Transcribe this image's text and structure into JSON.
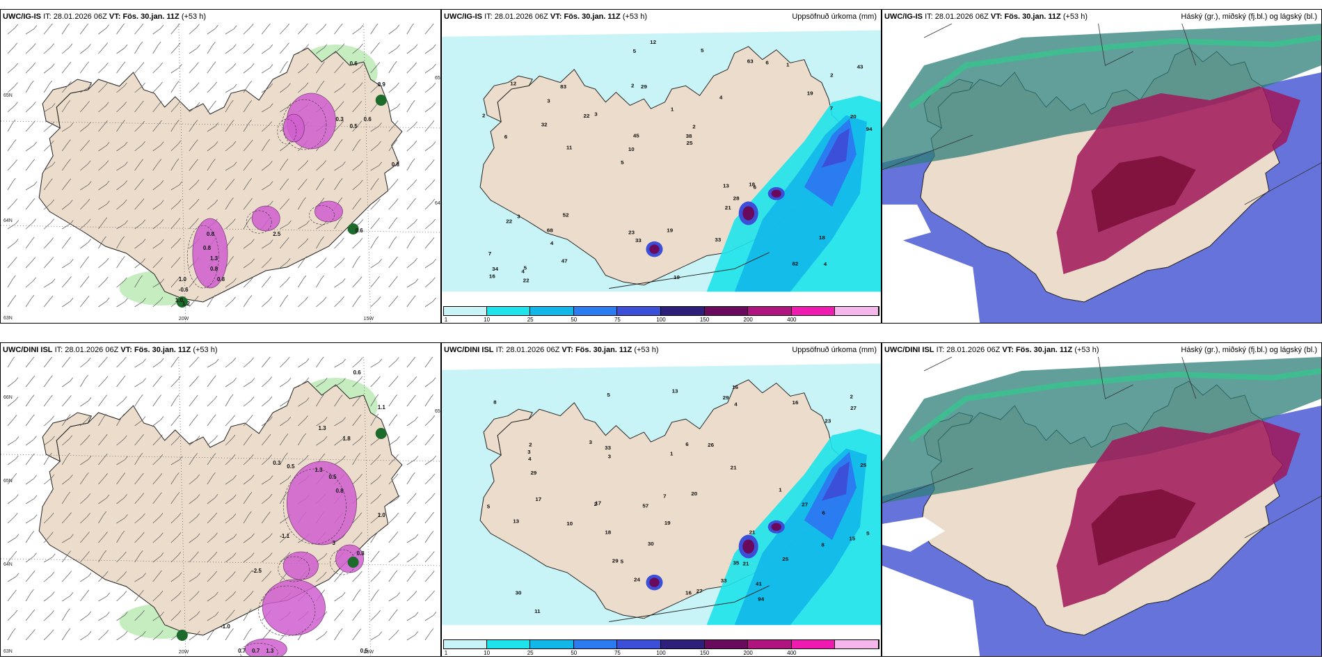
{
  "panels": [
    {
      "id": "p1",
      "model": "UWC/IG-IS",
      "it_label": "IT:",
      "it": "28.01.2026 06Z",
      "vt_label": "VT:",
      "vt": "Fös. 30.jan. 11Z",
      "lead": "(+53 h)",
      "right": "",
      "kind": "wind",
      "labels": [
        "0.6",
        "0.9",
        "0.3",
        "0.5",
        "0.6",
        "0.8",
        "0.6",
        "1.0",
        "-0.6",
        "1.0",
        "1.2",
        "0.8",
        "0.8",
        "1.3",
        "0.8",
        "0.8",
        "2.5"
      ],
      "axis": [
        "65N",
        "64N",
        "63N",
        "20W",
        "15W",
        "65N",
        "64N"
      ]
    },
    {
      "id": "p2",
      "model": "UWC/IG-IS",
      "it_label": "IT:",
      "it": "28.01.2026 06Z",
      "vt_label": "VT:",
      "vt": "Fös. 30.jan. 11Z",
      "lead": "(+53 h)",
      "right": "Uppsöfnuð úrkoma (mm)",
      "kind": "precip",
      "labels": [
        "4",
        "6",
        "2",
        "5",
        "4",
        "5",
        "2",
        "1",
        "3",
        "3",
        "7",
        "4",
        "29",
        "2",
        "6",
        "12",
        "5",
        "94",
        "13",
        "7",
        "10",
        "23",
        "45",
        "83",
        "63",
        "52",
        "82",
        "18",
        "18",
        "19",
        "22",
        "32",
        "21",
        "47",
        "20",
        "38",
        "34",
        "33",
        "25",
        "22",
        "19",
        "43",
        "28",
        "33",
        "68",
        "22",
        "16",
        "19",
        "1",
        "12",
        "11",
        "2",
        "3",
        "6",
        "4",
        "5"
      ],
      "axis": []
    },
    {
      "id": "p3",
      "model": "UWC/IG-IS",
      "it_label": "IT:",
      "it": "28.01.2026 06Z",
      "vt_label": "VT:",
      "vt": "Fös. 30.jan. 11Z",
      "lead": "(+53 h)",
      "right": "Háský (gr.), miðský (fj.bl.) og lágský (bl.)",
      "kind": "cloud",
      "labels": [],
      "axis": []
    },
    {
      "id": "p4",
      "model": "UWC/DINI ISL",
      "it_label": "IT:",
      "it": "28.01.2026 06Z",
      "vt_label": "VT:",
      "vt": "Fös. 30.jan. 11Z",
      "lead": "(+53 h)",
      "right": "",
      "kind": "wind",
      "labels": [
        "0.6",
        "1.1",
        "1.3",
        "1.8",
        "0.3",
        "0.5",
        "1.3",
        "0.5",
        "0.8",
        "1.0",
        "3",
        "0.8",
        "-1.1",
        "-2.5",
        "-1.0",
        "0.7",
        "1.3",
        "0.7",
        "0.5"
      ],
      "axis": [
        "66N",
        "65N",
        "64N",
        "63N",
        "20W",
        "15W",
        "65N"
      ]
    },
    {
      "id": "p5",
      "model": "UWC/DINI ISL",
      "it_label": "IT:",
      "it": "28.01.2026 06Z",
      "vt_label": "VT:",
      "vt": "Fös. 30.jan. 11Z",
      "lead": "(+53 h)",
      "right": "Uppsöfnuð úrkoma (mm)",
      "kind": "precip",
      "labels": [
        "3",
        "5",
        "5",
        "4",
        "16",
        "2",
        "2",
        "1",
        "6",
        "8",
        "8",
        "30",
        "94",
        "17",
        "5",
        "13",
        "29",
        "20",
        "41",
        "35",
        "57",
        "21",
        "27",
        "27",
        "25",
        "21",
        "19",
        "17",
        "29",
        "33",
        "26",
        "23",
        "27",
        "25",
        "21",
        "18",
        "16",
        "15",
        "11",
        "24",
        "29",
        "33",
        "30",
        "16",
        "13",
        "10",
        "7",
        "6",
        "3",
        "2",
        "5",
        "4",
        "3",
        "1"
      ],
      "axis": []
    },
    {
      "id": "p6",
      "model": "UWC/DINI ISL",
      "it_label": "IT:",
      "it": "28.01.2026 06Z",
      "vt_label": "VT:",
      "vt": "Fös. 30.jan. 11Z",
      "lead": "(+53 h)",
      "right": "Háský (gr.), miðský (fj.bl.) og lágský (bl.)",
      "kind": "cloud",
      "labels": [],
      "axis": []
    }
  ],
  "precip_scale": {
    "ticks": [
      "1",
      "10",
      "25",
      "50",
      "75",
      "100",
      "150",
      "200",
      "400"
    ],
    "colors": [
      "#c9f4f7",
      "#1ee3ea",
      "#12b7ea",
      "#2a7cf0",
      "#3b4fd8",
      "#2d1f7a",
      "#6a0a5c",
      "#b0147e",
      "#ef1ab0",
      "#f5b6ec"
    ]
  },
  "colors": {
    "land": "#ecdccb",
    "coast": "#222222",
    "wind_green": "#b6e8b0",
    "snow_magenta": "#d05fd0",
    "cloud_high": "#3bbf8f",
    "cloud_mid": "#a0185a",
    "cloud_low": "#4a5bd4"
  }
}
